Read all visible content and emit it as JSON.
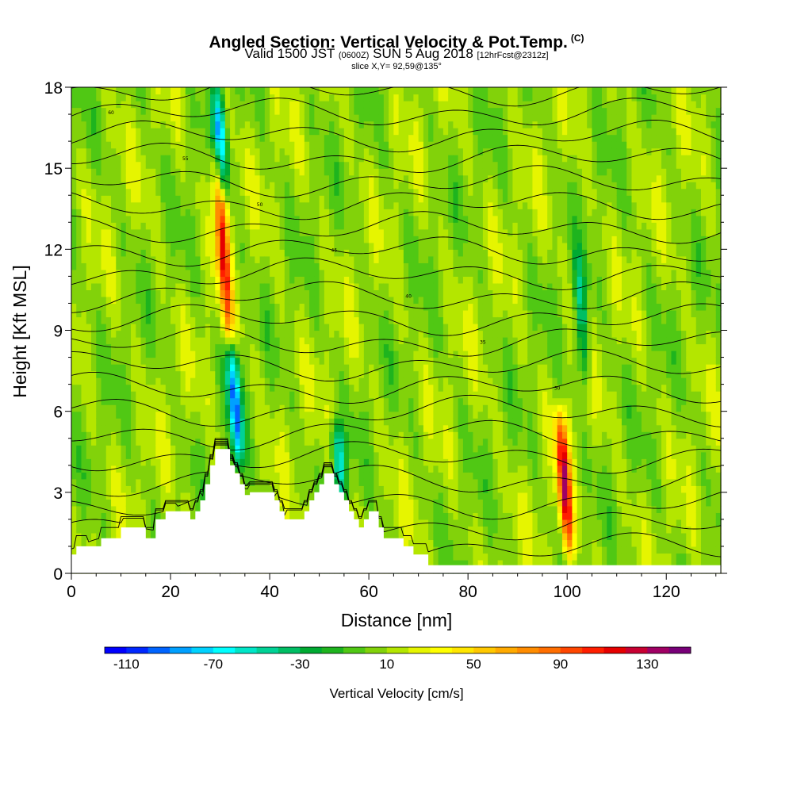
{
  "header": {
    "title": "Angled Section: Vertical Velocity & Pot.Temp.",
    "title_suffix": "(C)",
    "valid_prefix": "Valid 1500 JST",
    "valid_zulu": "(0600Z)",
    "valid_date": "SUN 5 Aug 2018",
    "forecast": "[12hrFcst@2312z]",
    "slice": "slice X,Y= 92,59@135°"
  },
  "chart_data": {
    "type": "heatmap",
    "xlabel": "Distance [nm]",
    "ylabel": "Height [Kft MSL]",
    "xlim": [
      0,
      131
    ],
    "ylim": [
      0,
      18
    ],
    "x_ticks": [
      0,
      20,
      40,
      60,
      80,
      100,
      120
    ],
    "y_ticks": [
      0,
      3,
      6,
      9,
      12,
      15,
      18
    ],
    "colorbar": {
      "title": "Vertical Velocity [cm/s]",
      "tick_labels": [
        -110,
        -70,
        -30,
        10,
        50,
        90,
        130
      ],
      "range": [
        -120,
        150
      ],
      "step": 10,
      "colors": [
        "#0000ff",
        "#0028ff",
        "#0064ff",
        "#00a0ff",
        "#00d2ff",
        "#00ffff",
        "#00e6c8",
        "#00d296",
        "#00be64",
        "#00aa32",
        "#1eb41e",
        "#50c814",
        "#82d20a",
        "#b4e600",
        "#e6f500",
        "#ffff00",
        "#ffe600",
        "#ffc800",
        "#ffaa00",
        "#ff8c00",
        "#ff6e00",
        "#ff4600",
        "#ff1e00",
        "#e60000",
        "#c80032",
        "#a00064",
        "#780078"
      ]
    },
    "features": [
      {
        "name": "updraft",
        "x": 30.5,
        "y_bottom": 8.5,
        "y_top": 16,
        "peak_cm_s": 100
      },
      {
        "name": "downdraft",
        "x": 33,
        "y_bottom": 4,
        "y_top": 8.5,
        "peak_cm_s": -100
      },
      {
        "name": "downdraft",
        "x": 30,
        "y_bottom": 14,
        "y_top": 18,
        "peak_cm_s": -90
      },
      {
        "name": "downdraft",
        "x": 54,
        "y_bottom": 2.8,
        "y_top": 5.5,
        "peak_cm_s": -70
      },
      {
        "name": "updraft",
        "x": 99.5,
        "y_bottom": 0.5,
        "y_top": 6,
        "peak_cm_s": 120
      },
      {
        "name": "downdraft",
        "x": 103,
        "y_bottom": 7,
        "y_top": 12,
        "peak_cm_s": -50
      }
    ],
    "terrain_kft": [
      [
        0,
        0.7
      ],
      [
        1,
        1.0
      ],
      [
        5,
        1.0
      ],
      [
        6,
        1.3
      ],
      [
        9,
        1.3
      ],
      [
        10,
        1.7
      ],
      [
        14,
        1.7
      ],
      [
        15,
        1.3
      ],
      [
        16,
        1.3
      ],
      [
        17,
        2.0
      ],
      [
        18,
        2.0
      ],
      [
        19,
        2.3
      ],
      [
        23,
        2.3
      ],
      [
        24,
        2.0
      ],
      [
        25,
        2.3
      ],
      [
        26,
        2.7
      ],
      [
        27,
        3.3
      ],
      [
        28,
        4.0
      ],
      [
        29,
        4.6
      ],
      [
        31,
        4.6
      ],
      [
        32,
        4.0
      ],
      [
        33,
        3.7
      ],
      [
        34,
        3.3
      ],
      [
        35,
        2.9
      ],
      [
        36,
        3.0
      ],
      [
        40,
        3.0
      ],
      [
        41,
        2.7
      ],
      [
        42,
        2.3
      ],
      [
        43,
        2.0
      ],
      [
        46,
        2.0
      ],
      [
        47,
        2.3
      ],
      [
        48,
        2.7
      ],
      [
        49,
        3.0
      ],
      [
        50,
        3.3
      ],
      [
        51,
        3.7
      ],
      [
        52,
        3.7
      ],
      [
        53,
        3.3
      ],
      [
        54,
        3.0
      ],
      [
        55,
        2.7
      ],
      [
        56,
        2.3
      ],
      [
        57,
        2.0
      ],
      [
        58,
        1.7
      ],
      [
        59,
        2.0
      ],
      [
        60,
        2.3
      ],
      [
        61,
        2.3
      ],
      [
        62,
        1.7
      ],
      [
        63,
        1.3
      ],
      [
        66,
        1.3
      ],
      [
        67,
        1.0
      ],
      [
        69,
        0.7
      ],
      [
        71,
        0.7
      ],
      [
        72,
        0.3
      ],
      [
        131,
        0.3
      ]
    ],
    "isentrope_labels": [
      "60",
      "55",
      "50",
      "45",
      "40",
      "35",
      "30"
    ]
  }
}
